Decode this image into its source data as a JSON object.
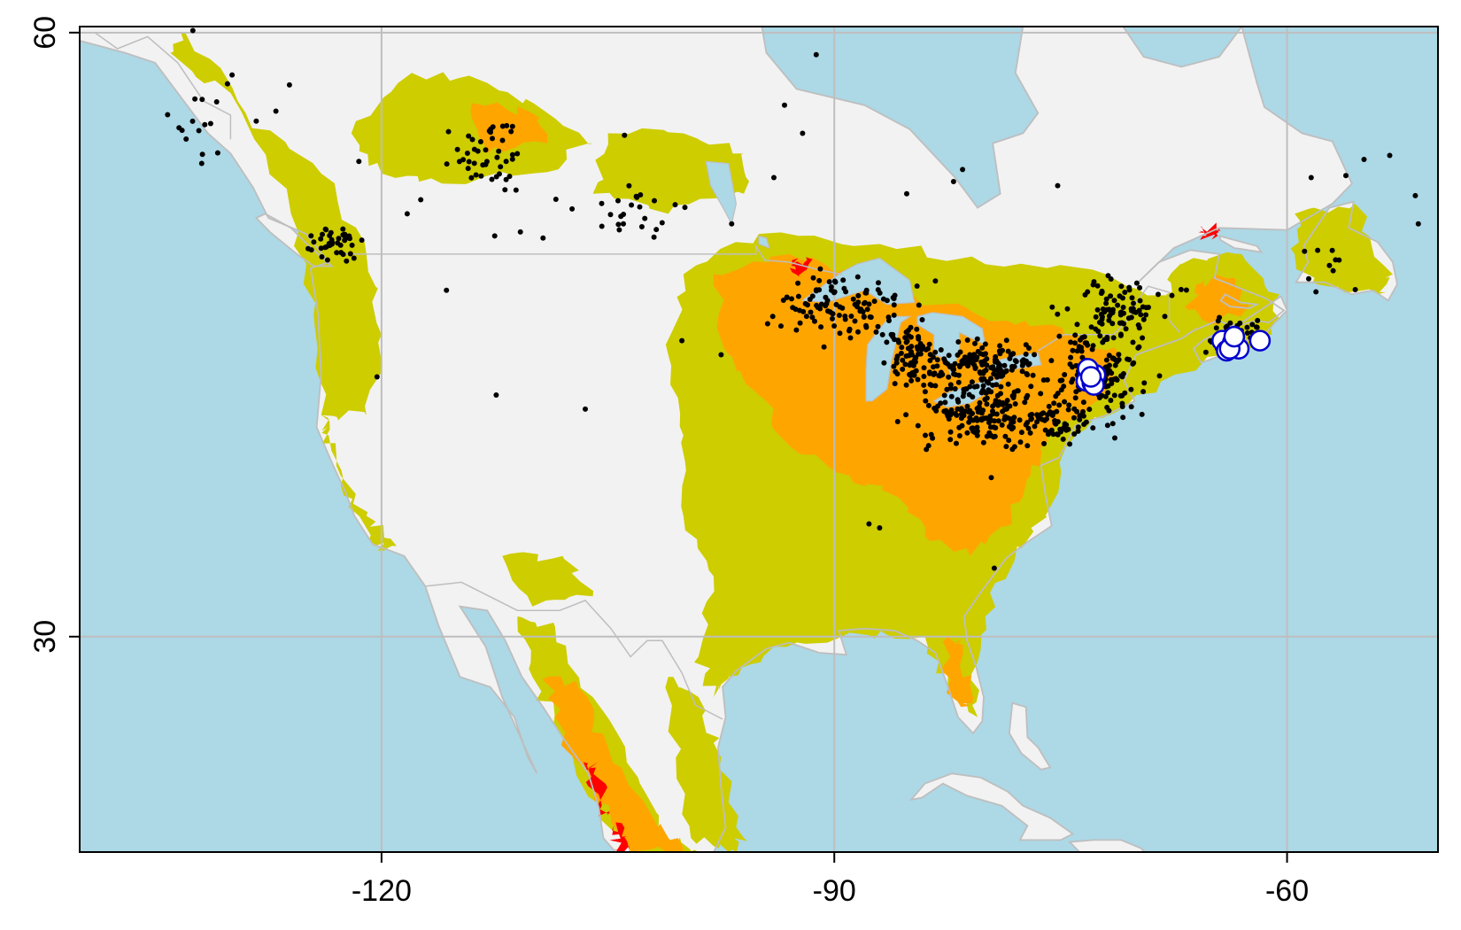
{
  "map": {
    "projection": "longitude-latitude",
    "extent": {
      "lon": [
        -140,
        -50
      ],
      "lat": [
        19.3,
        60.3
      ]
    },
    "graticule": {
      "lons": [
        -120,
        -90,
        -60
      ],
      "lats": [
        30,
        60
      ]
    },
    "x_ticks": [
      {
        "value": -120,
        "label": "-120"
      },
      {
        "value": -90,
        "label": "-90"
      },
      {
        "value": -60,
        "label": "-60"
      }
    ],
    "y_ticks": [
      {
        "value": 60,
        "label": "60"
      },
      {
        "value": 30,
        "label": "30"
      }
    ],
    "colors": {
      "ocean": "#add8e6",
      "land": "#f2f2f2",
      "border": "#bebebe",
      "suitability_low": "#cdcd00",
      "suitability_mid": "#ffa500",
      "suitability_high": "#ff0000",
      "occurrence": "#000000",
      "highlight_fill": "#ffffff",
      "highlight_edge": "#0000cd"
    },
    "suitability_regions": [
      {
        "level": "low",
        "name": "eastern-us",
        "poly": [
          [
            -100,
            48
          ],
          [
            -95,
            50
          ],
          [
            -87,
            49.5
          ],
          [
            -80,
            48.5
          ],
          [
            -72,
            48
          ],
          [
            -66,
            46
          ],
          [
            -64,
            44
          ],
          [
            -70,
            42
          ],
          [
            -74,
            40
          ],
          [
            -76,
            36
          ],
          [
            -78,
            34
          ],
          [
            -80,
            31
          ],
          [
            -81,
            28
          ],
          [
            -80.5,
            26
          ],
          [
            -82.5,
            27.5
          ],
          [
            -84,
            30
          ],
          [
            -89,
            30.2
          ],
          [
            -94,
            29.5
          ],
          [
            -97,
            28
          ],
          [
            -98,
            27
          ],
          [
            -99,
            29
          ],
          [
            -98,
            33
          ],
          [
            -100,
            36
          ],
          [
            -100,
            40
          ],
          [
            -101,
            44
          ]
        ]
      },
      {
        "level": "low",
        "name": "mexico-sierra",
        "poly": [
          [
            -111,
            31
          ],
          [
            -108.5,
            30.5
          ],
          [
            -106,
            27
          ],
          [
            -103,
            23
          ],
          [
            -101,
            20
          ],
          [
            -99,
            19.3
          ],
          [
            -103,
            19.3
          ],
          [
            -105.5,
            21
          ],
          [
            -108,
            25
          ],
          [
            -110,
            28
          ]
        ]
      },
      {
        "level": "low",
        "name": "mexico-east",
        "poly": [
          [
            -101,
            28
          ],
          [
            -99,
            27
          ],
          [
            -97.5,
            24
          ],
          [
            -96,
            20
          ],
          [
            -97,
            19.3
          ],
          [
            -99.5,
            20
          ],
          [
            -100.5,
            24
          ]
        ]
      },
      {
        "level": "low",
        "name": "pacific-northwest",
        "poly": [
          [
            -134,
            59
          ],
          [
            -130,
            57
          ],
          [
            -126,
            51
          ],
          [
            -124.5,
            46
          ],
          [
            -124,
            41
          ],
          [
            -121,
            41
          ],
          [
            -120,
            45
          ],
          [
            -121,
            49
          ],
          [
            -124,
            53
          ],
          [
            -129,
            56
          ],
          [
            -133,
            60
          ]
        ]
      },
      {
        "level": "low",
        "name": "california-coast",
        "poly": [
          [
            -124,
            41
          ],
          [
            -123,
            38.5
          ],
          [
            -121,
            36
          ],
          [
            -119,
            34.5
          ],
          [
            -120.5,
            34.5
          ],
          [
            -122.5,
            37
          ],
          [
            -123.5,
            40
          ]
        ]
      },
      {
        "level": "low",
        "name": "canadian-west",
        "poly": [
          [
            -118,
            58
          ],
          [
            -113,
            57.5
          ],
          [
            -109,
            56
          ],
          [
            -106,
            54.5
          ],
          [
            -110,
            53
          ],
          [
            -116,
            52.5
          ],
          [
            -120,
            53
          ],
          [
            -122,
            55
          ]
        ]
      },
      {
        "level": "low",
        "name": "canadian-central",
        "poly": [
          [
            -105,
            55
          ],
          [
            -100,
            55
          ],
          [
            -96,
            54
          ],
          [
            -96,
            52
          ],
          [
            -101,
            51
          ],
          [
            -106,
            52
          ]
        ]
      },
      {
        "level": "low",
        "name": "maritimes",
        "poly": [
          [
            -67,
            48.5
          ],
          [
            -63,
            49
          ],
          [
            -60.5,
            47
          ],
          [
            -61,
            45
          ],
          [
            -64,
            44
          ],
          [
            -66.5,
            45
          ],
          [
            -68,
            47
          ]
        ]
      },
      {
        "level": "low",
        "name": "newfoundland",
        "poly": [
          [
            -59.5,
            51
          ],
          [
            -55.5,
            51.5
          ],
          [
            -53,
            48
          ],
          [
            -54,
            47
          ],
          [
            -58,
            47.5
          ],
          [
            -59.5,
            49
          ]
        ]
      },
      {
        "level": "low",
        "name": "southwest-patch",
        "poly": [
          [
            -112,
            34
          ],
          [
            -108,
            34
          ],
          [
            -106,
            32
          ],
          [
            -110,
            31.5
          ]
        ]
      },
      {
        "level": "mid",
        "name": "great-lakes-midwest",
        "poly": [
          [
            -98,
            48
          ],
          [
            -93,
            49
          ],
          [
            -88,
            48
          ],
          [
            -83,
            46.5
          ],
          [
            -78,
            45.5
          ],
          [
            -74,
            45
          ],
          [
            -71,
            44
          ],
          [
            -73,
            41.5
          ],
          [
            -76,
            40
          ],
          [
            -77,
            38
          ],
          [
            -78.5,
            35.5
          ],
          [
            -81,
            34
          ],
          [
            -84,
            35
          ],
          [
            -86,
            37
          ],
          [
            -89,
            38
          ],
          [
            -93,
            39.5
          ],
          [
            -95,
            42
          ],
          [
            -97,
            44
          ]
        ]
      },
      {
        "level": "mid",
        "name": "appalachia",
        "poly": [
          [
            -84,
            36.5
          ],
          [
            -81,
            35.5
          ],
          [
            -79,
            36.5
          ],
          [
            -80.5,
            38.5
          ],
          [
            -83,
            38.5
          ]
        ]
      },
      {
        "level": "mid",
        "name": "florida",
        "poly": [
          [
            -82.5,
            30
          ],
          [
            -81.5,
            29.5
          ],
          [
            -80.8,
            27
          ],
          [
            -81.6,
            26.5
          ],
          [
            -82.8,
            28.5
          ]
        ]
      },
      {
        "level": "mid",
        "name": "mexico-sierra-core",
        "poly": [
          [
            -109,
            28
          ],
          [
            -107,
            27.5
          ],
          [
            -105,
            24.5
          ],
          [
            -102,
            21
          ],
          [
            -100,
            19.3
          ],
          [
            -103.5,
            19.3
          ],
          [
            -106,
            22.5
          ],
          [
            -108.5,
            26
          ]
        ]
      },
      {
        "level": "mid",
        "name": "canada-patch",
        "poly": [
          [
            -114,
            56.5
          ],
          [
            -110,
            56
          ],
          [
            -109,
            54.5
          ],
          [
            -113,
            54
          ]
        ]
      },
      {
        "level": "mid",
        "name": "maritimes-core",
        "poly": [
          [
            -66,
            47.5
          ],
          [
            -64,
            47.8
          ],
          [
            -62.5,
            46.5
          ],
          [
            -64.5,
            45.5
          ],
          [
            -66.5,
            46.2
          ]
        ]
      },
      {
        "level": "high",
        "name": "mexico-red-1",
        "poly": [
          [
            -106.4,
            23.6
          ],
          [
            -105.8,
            23.5
          ],
          [
            -105,
            21.2
          ],
          [
            -105.6,
            21.3
          ]
        ]
      },
      {
        "level": "high",
        "name": "mexico-red-2",
        "poly": [
          [
            -104.6,
            20.6
          ],
          [
            -103.9,
            20.5
          ],
          [
            -103.6,
            19.3
          ],
          [
            -104.4,
            19.4
          ]
        ]
      },
      {
        "level": "high",
        "name": "ontario-red",
        "poly": [
          [
            -92.8,
            48.7
          ],
          [
            -91.8,
            48.7
          ],
          [
            -91.8,
            48.1
          ],
          [
            -92.8,
            48.1
          ]
        ]
      },
      {
        "level": "high",
        "name": "quebec-red",
        "poly": [
          [
            -65.6,
            50.3
          ],
          [
            -64.6,
            50.3
          ],
          [
            -64.6,
            49.9
          ],
          [
            -65.6,
            49.9
          ]
        ]
      }
    ],
    "occurrence_clusters": [
      {
        "name": "southern-ontario",
        "center": [
          -80.5,
          43.4
        ],
        "spread": [
          4.5,
          1.3
        ],
        "count": 180
      },
      {
        "name": "ohio-pennsylvania",
        "center": [
          -80.0,
          41.0
        ],
        "spread": [
          4.5,
          1.3
        ],
        "count": 160
      },
      {
        "name": "new-england",
        "center": [
          -72.5,
          43.0
        ],
        "spread": [
          2.8,
          2.3
        ],
        "count": 140
      },
      {
        "name": "saint-lawrence",
        "center": [
          -71.5,
          46.5
        ],
        "spread": [
          3.5,
          1.3
        ],
        "count": 80
      },
      {
        "name": "upper-midwest",
        "center": [
          -89.0,
          46.5
        ],
        "spread": [
          4.5,
          1.6
        ],
        "count": 110
      },
      {
        "name": "michigan",
        "center": [
          -85.0,
          44.0
        ],
        "spread": [
          1.5,
          1.6
        ],
        "count": 60
      },
      {
        "name": "nova-scotia",
        "center": [
          -63.5,
          45.0
        ],
        "spread": [
          2.0,
          0.9
        ],
        "count": 35
      },
      {
        "name": "alberta",
        "center": [
          -113.0,
          54.0
        ],
        "spread": [
          2.8,
          2.0
        ],
        "count": 45
      },
      {
        "name": "british-columbia-coast",
        "center": [
          -123.0,
          49.5
        ],
        "spread": [
          1.6,
          1.0
        ],
        "count": 40
      },
      {
        "name": "southeast-alaska",
        "center": [
          -132.0,
          55.5
        ],
        "spread": [
          2.0,
          2.0
        ],
        "count": 15
      },
      {
        "name": "prairies",
        "center": [
          -104.0,
          51.0
        ],
        "spread": [
          5.0,
          1.2
        ],
        "count": 25
      },
      {
        "name": "new-york-new-jersey",
        "center": [
          -75.0,
          40.8
        ],
        "spread": [
          2.0,
          1.0
        ],
        "count": 50
      },
      {
        "name": "newfoundland",
        "center": [
          -57.0,
          48.5
        ],
        "spread": [
          2.0,
          1.5
        ],
        "count": 10
      }
    ],
    "occurrence_points": [
      [
        -132.5,
        60.1
      ],
      [
        -91.2,
        58.9
      ],
      [
        -93.3,
        56.4
      ],
      [
        -103.9,
        54.9
      ],
      [
        -92.1,
        55.0
      ],
      [
        -81.5,
        53.2
      ],
      [
        -82.1,
        52.6
      ],
      [
        -85.2,
        52.0
      ],
      [
        -112.4,
        42.0
      ],
      [
        -120.3,
        42.9
      ],
      [
        -115.7,
        47.2
      ],
      [
        -106.5,
        41.3
      ],
      [
        -100.1,
        44.7
      ],
      [
        -97.5,
        44.0
      ],
      [
        -80.8,
        40.2
      ],
      [
        -79.6,
        37.9
      ],
      [
        -83.9,
        39.3
      ],
      [
        -87.7,
        35.6
      ],
      [
        -87.0,
        35.4
      ],
      [
        -79.4,
        33.4
      ],
      [
        -51.3,
        50.5
      ],
      [
        -51.5,
        51.9
      ],
      [
        -53.2,
        53.9
      ],
      [
        -56.1,
        52.9
      ],
      [
        -58.4,
        52.8
      ],
      [
        -54.9,
        53.7
      ],
      [
        -94.0,
        52.8
      ],
      [
        -75.2,
        52.4
      ],
      [
        -96.8,
        50.5
      ],
      [
        -109.3,
        49.8
      ],
      [
        -110.8,
        50.1
      ],
      [
        -112.5,
        49.9
      ],
      [
        -118.3,
        51.0
      ],
      [
        -129.9,
        57.9
      ],
      [
        -126.1,
        57.4
      ],
      [
        -127.0,
        56.1
      ],
      [
        -128.3,
        55.6
      ],
      [
        -121.5,
        53.6
      ],
      [
        -117.4,
        51.7
      ]
    ],
    "highlighted_points": [
      [
        -73.1,
        43.1
      ],
      [
        -73.3,
        42.7
      ],
      [
        -72.9,
        42.6
      ],
      [
        -72.7,
        43.0
      ],
      [
        -73.2,
        43.3
      ],
      [
        -72.8,
        42.5
      ],
      [
        -73.0,
        42.9
      ],
      [
        -64.3,
        44.7
      ],
      [
        -64.0,
        44.2
      ],
      [
        -63.6,
        44.6
      ],
      [
        -63.2,
        44.3
      ],
      [
        -61.8,
        44.7
      ],
      [
        -63.8,
        44.3
      ],
      [
        -63.5,
        44.9
      ]
    ]
  }
}
